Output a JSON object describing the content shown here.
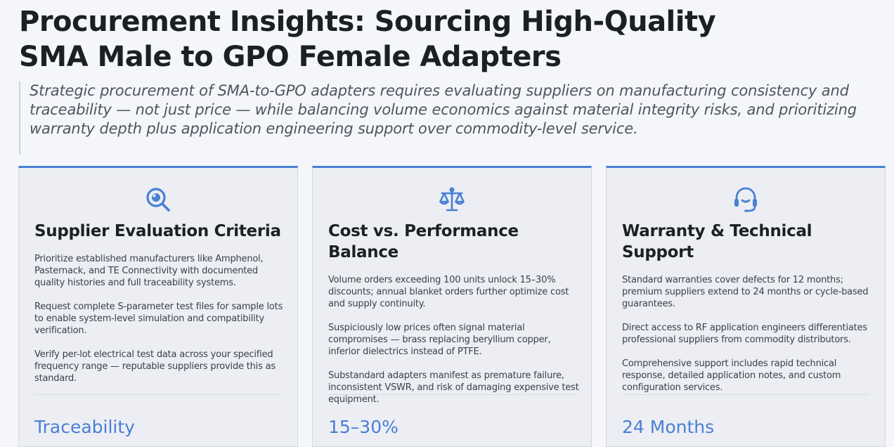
{
  "header": {
    "title_line1": "Procurement Insights: Sourcing High-Quality",
    "title_line2": "SMA Male to GPO Female Adapters",
    "summary": "Strategic procurement of SMA-to-GPO adapters requires evaluating suppliers on manufacturing consistency and traceability — not just price — while balancing volume economics against material integrity risks, and prioritizing warranty depth plus application engineering support over commodity-level service."
  },
  "theme": {
    "accent": "#4a7fd4",
    "card_bg": "#eceef3",
    "page_bg": "#f5f6f9"
  },
  "cards": [
    {
      "icon": "magnifier-icon",
      "title": "Supplier Evaluation Criteria",
      "paragraphs": [
        "Prioritize established manufacturers like Amphenol, Pasternack, and TE Connectivity with documented quality histories and full traceability systems.",
        "Request complete S-parameter test files for sample lots to enable system-level simulation and compatibility verification.",
        "Verify per-lot electrical test data across your specified frequency range — reputable suppliers provide this as standard."
      ],
      "stat": "Traceability"
    },
    {
      "icon": "scale-icon",
      "title": "Cost vs. Performance Balance",
      "paragraphs": [
        "Volume orders exceeding 100 units unlock 15–30% discounts; annual blanket orders further optimize cost and supply continuity.",
        "Suspiciously low prices often signal material compromises — brass replacing beryllium copper, inferior dielectrics instead of PTFE.",
        "Substandard adapters manifest as premature failure, inconsistent VSWR, and risk of damaging expensive test equipment."
      ],
      "stat": "15–30%"
    },
    {
      "icon": "headset-icon",
      "title": "Warranty & Technical Support",
      "paragraphs": [
        "Standard warranties cover defects for 12 months; premium suppliers extend to 24 months or cycle-based guarantees.",
        "Direct access to RF application engineers differentiates professional suppliers from commodity distributors.",
        "Comprehensive support includes rapid technical response, detailed application notes, and custom configuration services."
      ],
      "stat": "24 Months"
    }
  ]
}
